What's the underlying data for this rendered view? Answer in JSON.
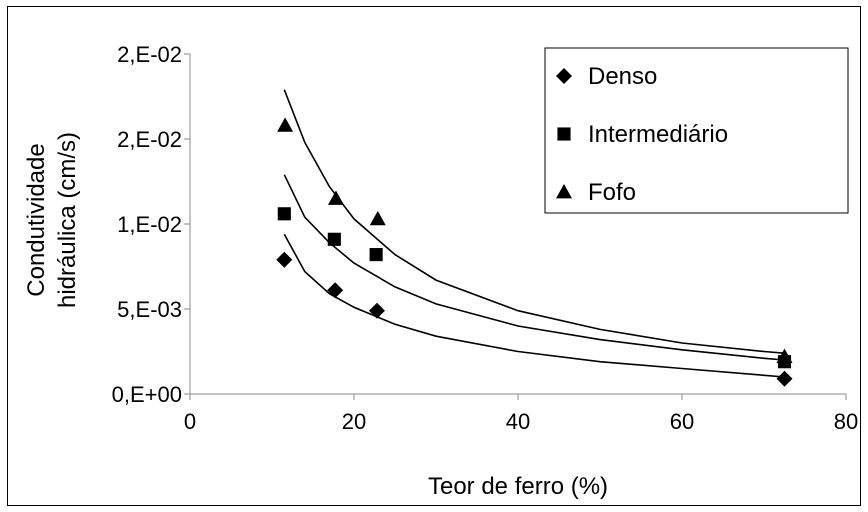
{
  "chart_data": {
    "type": "scatter",
    "title": "",
    "xlabel": "Teor de ferro (%)",
    "ylabel_lines": [
      "Condutividade",
      "hidráulica (cm/s)"
    ],
    "xlim": [
      0,
      80
    ],
    "ylim": [
      0,
      0.02
    ],
    "xticks": [
      {
        "value": 0,
        "label": "0"
      },
      {
        "value": 20,
        "label": "20"
      },
      {
        "value": 40,
        "label": "40"
      },
      {
        "value": 60,
        "label": "60"
      },
      {
        "value": 80,
        "label": "80"
      }
    ],
    "yticks": [
      {
        "value": 0,
        "label": "0,E+00"
      },
      {
        "value": 0.005,
        "label": "5,E-03"
      },
      {
        "value": 0.01,
        "label": "1,E-02"
      },
      {
        "value": 0.015,
        "label": "2,E-02"
      },
      {
        "value": 0.02,
        "label": "2,E-02"
      }
    ],
    "grid": false,
    "legend_position": "top-right",
    "series": [
      {
        "name": "Denso",
        "marker": "diamond",
        "points": [
          [
            11.5,
            0.0079
          ],
          [
            17.7,
            0.0061
          ],
          [
            22.8,
            0.0049
          ],
          [
            72.5,
            0.0009
          ]
        ],
        "trend": [
          [
            11.5,
            0.0094
          ],
          [
            14,
            0.0072
          ],
          [
            17,
            0.0059
          ],
          [
            20,
            0.0051
          ],
          [
            25,
            0.0041
          ],
          [
            30,
            0.0034
          ],
          [
            40,
            0.0025
          ],
          [
            50,
            0.0019
          ],
          [
            60,
            0.0015
          ],
          [
            70,
            0.0011
          ],
          [
            72.5,
            0.001
          ]
        ]
      },
      {
        "name": "Intermediário",
        "marker": "square",
        "points": [
          [
            11.5,
            0.0106
          ],
          [
            17.6,
            0.0091
          ],
          [
            22.7,
            0.0082
          ],
          [
            72.5,
            0.0019
          ]
        ],
        "trend": [
          [
            11.5,
            0.0129
          ],
          [
            14,
            0.0104
          ],
          [
            17,
            0.0089
          ],
          [
            20,
            0.0077
          ],
          [
            25,
            0.0063
          ],
          [
            30,
            0.0053
          ],
          [
            40,
            0.004
          ],
          [
            50,
            0.0032
          ],
          [
            60,
            0.0026
          ],
          [
            70,
            0.0021
          ],
          [
            72.5,
            0.002
          ]
        ]
      },
      {
        "name": "Fofo",
        "marker": "triangle",
        "points": [
          [
            11.6,
            0.0158
          ],
          [
            17.8,
            0.0115
          ],
          [
            22.9,
            0.0103
          ],
          [
            72.5,
            0.0022
          ]
        ],
        "trend": [
          [
            11.5,
            0.0179
          ],
          [
            14,
            0.0148
          ],
          [
            17,
            0.0122
          ],
          [
            20,
            0.0103
          ],
          [
            25,
            0.0082
          ],
          [
            30,
            0.0067
          ],
          [
            40,
            0.0049
          ],
          [
            50,
            0.0038
          ],
          [
            60,
            0.003
          ],
          [
            70,
            0.0025
          ],
          [
            72.5,
            0.0024
          ]
        ]
      }
    ]
  }
}
